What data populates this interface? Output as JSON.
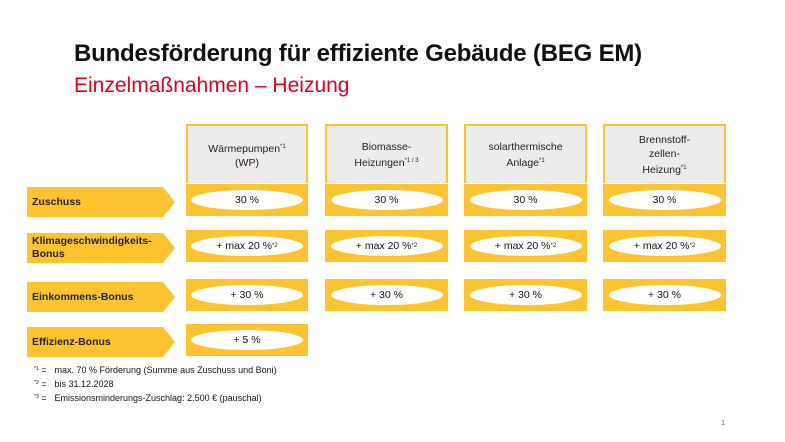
{
  "header": {
    "title": "Bundesförderung für effiziente Gebäude (BEG EM)",
    "subtitle": "Einzelmaßnahmen –  Heizung"
  },
  "columns": [
    {
      "line1": "Wärmepumpen",
      "sup1": "*1",
      "line2": "(WP)",
      "sup2": ""
    },
    {
      "line1": "Biomasse-",
      "sup1": "",
      "line2": "Heizungen",
      "sup2": "*1 / 3"
    },
    {
      "line1": "solarthermische",
      "sup1": "",
      "line2": "Anlage",
      "sup2": "*1"
    },
    {
      "line1": "Brennstoff-",
      "sup1": "",
      "line2": "zellen-",
      "line3": "Heizung",
      "sup3": "*1"
    }
  ],
  "rows": [
    {
      "label": "Zuschuss",
      "values": [
        "30 %",
        "30 %",
        "30 %",
        "30 %"
      ],
      "sup": ""
    },
    {
      "label": "Klimageschwindigkeits-Bonus",
      "values": [
        "+ max 20 %",
        "+ max 20 %",
        "+ max 20 %",
        "+ max 20 %"
      ],
      "sup": "*2"
    },
    {
      "label": "Einkommens-Bonus",
      "values": [
        "+ 30 %",
        "+ 30 %",
        "+ 30 %",
        "+ 30 %"
      ],
      "sup": ""
    },
    {
      "label": "Effizienz-Bonus",
      "values": [
        "+ 5 %"
      ],
      "sup": ""
    }
  ],
  "footnotes": [
    {
      "mark": "*1",
      "eq": "=",
      "text": "max. 70 % Förderung (Summe aus Zuschuss und Boni)"
    },
    {
      "mark": "*2",
      "eq": "=",
      "text": "bis 31.12.2028"
    },
    {
      "mark": "*3",
      "eq": "=",
      "text": "Emissionsminderungs-Zuschlag: 2.500 € (pauschal)"
    }
  ],
  "page_number": "1",
  "colors": {
    "accent_yellow": "#fdc42f",
    "header_gray": "#ececec",
    "subtitle_red": "#e2001a"
  }
}
